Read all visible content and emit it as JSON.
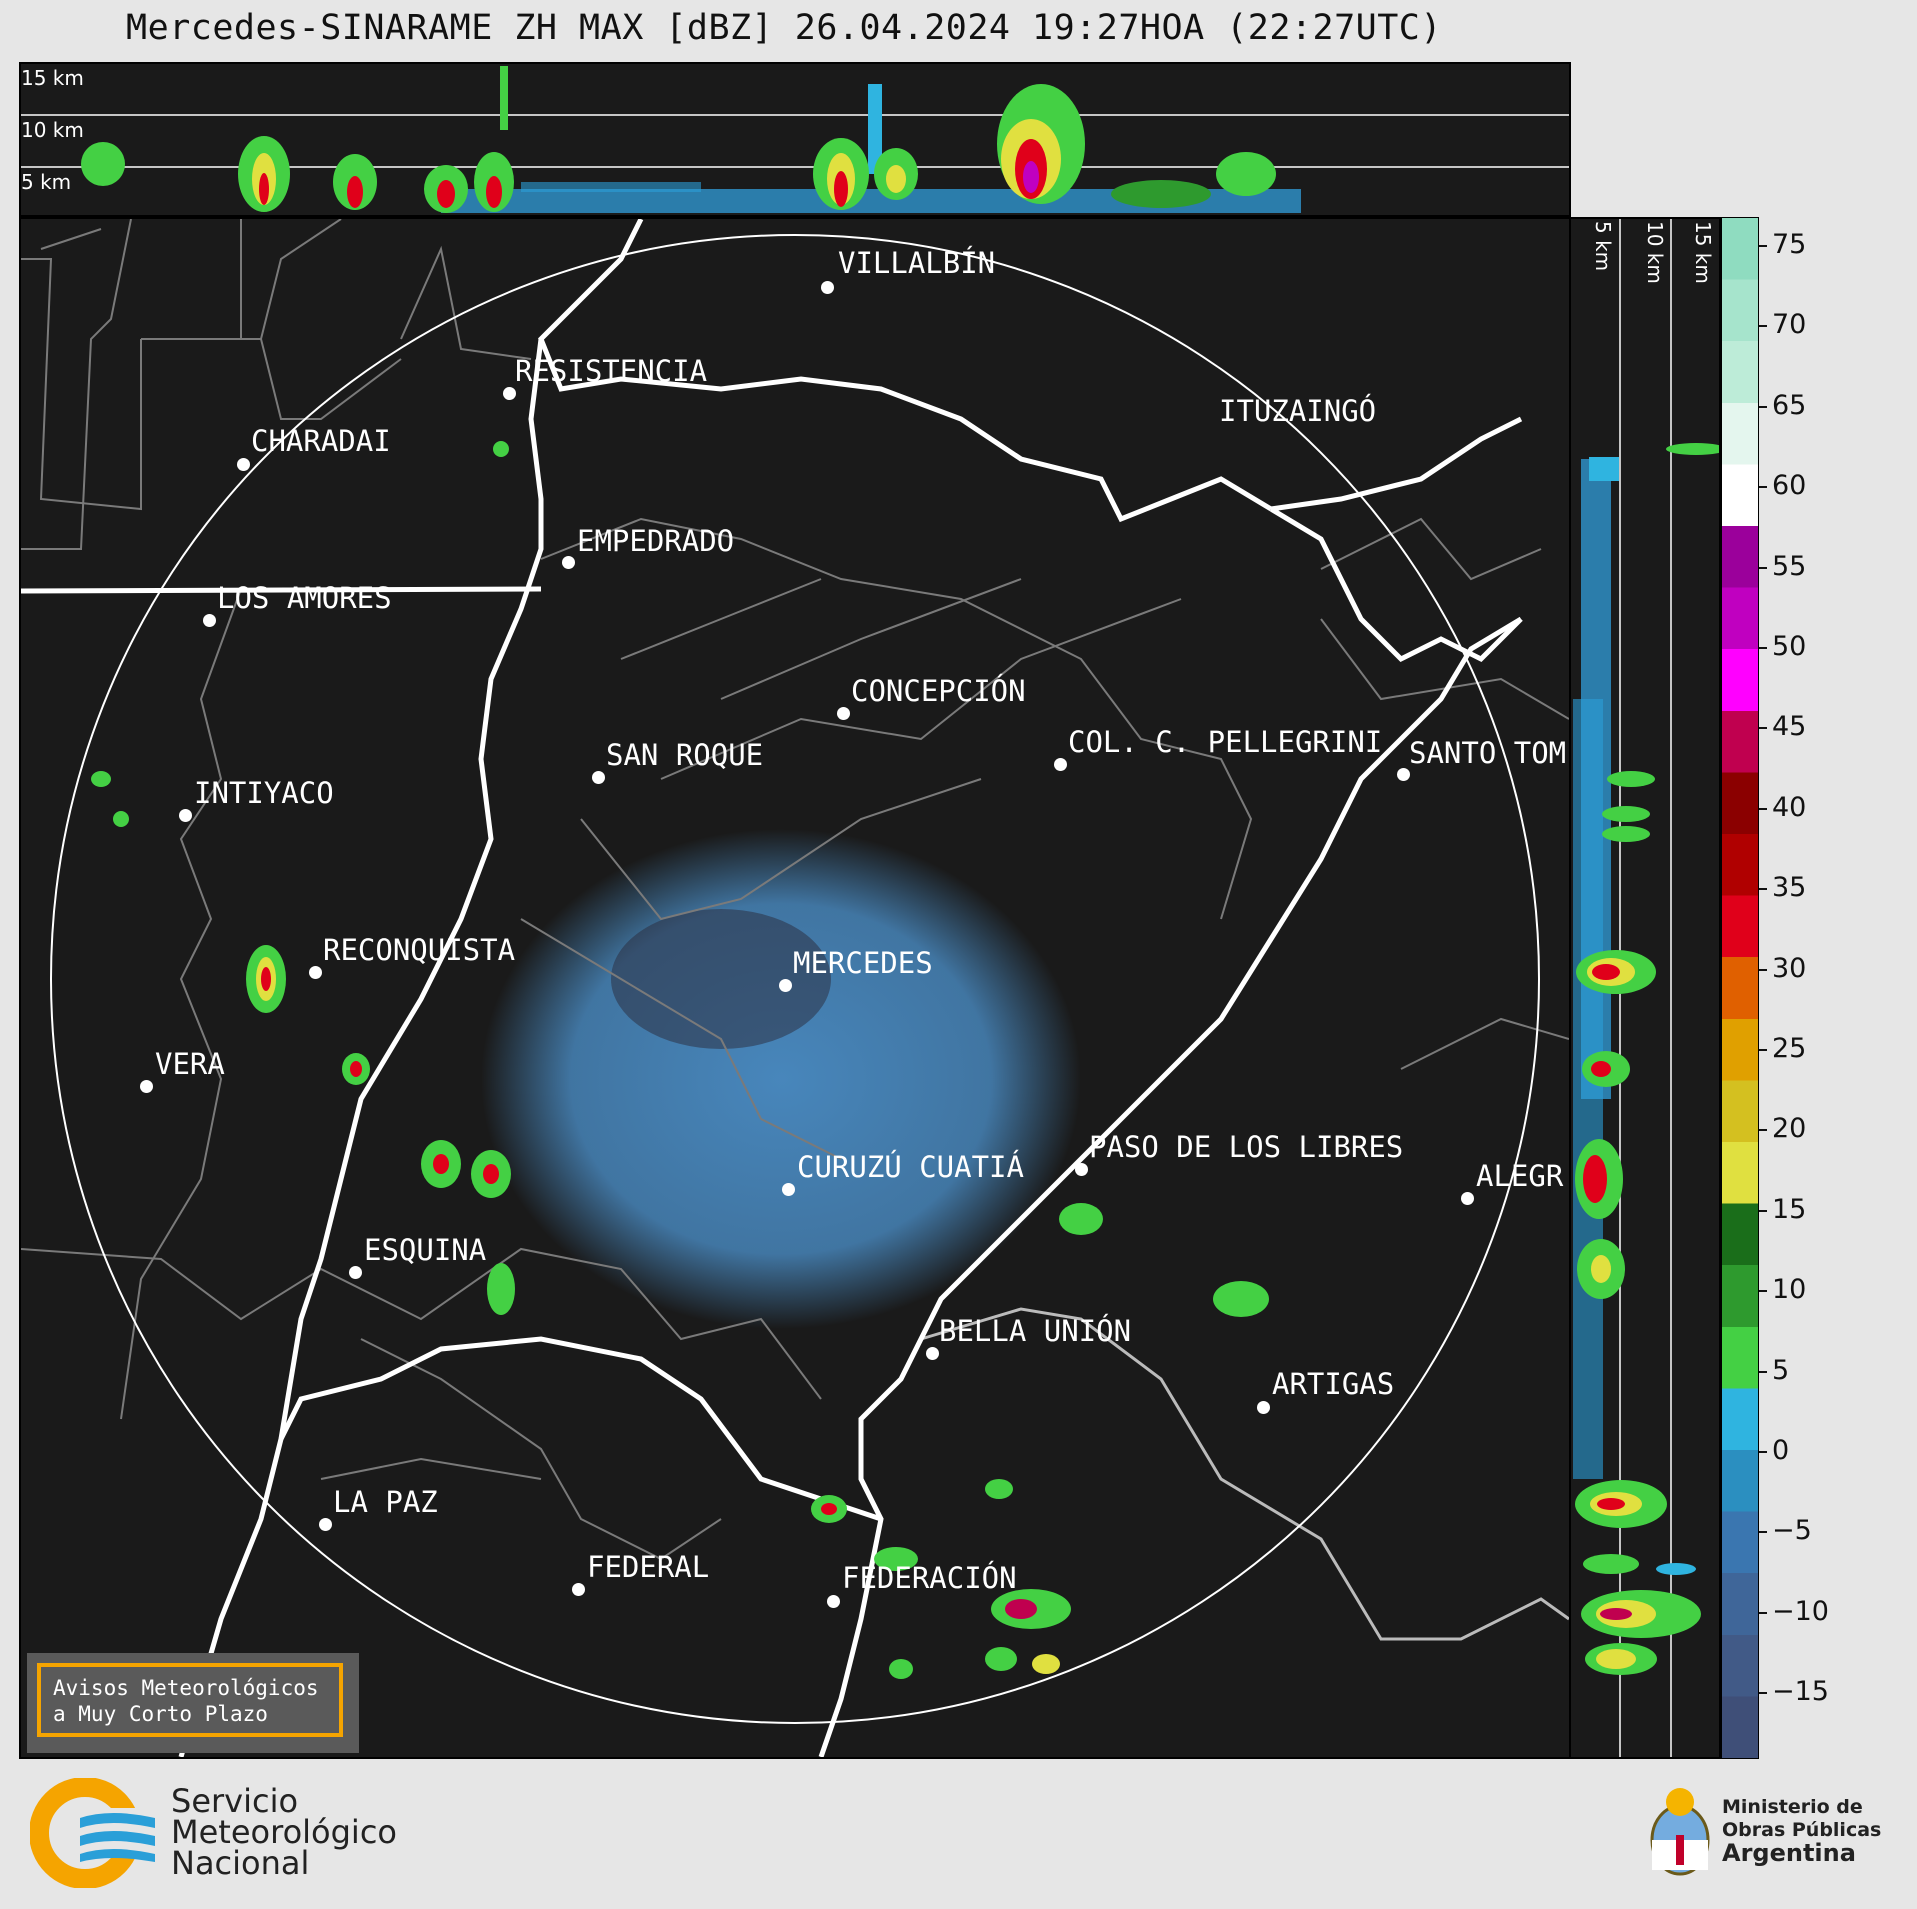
{
  "title": "Mercedes-SINARAME ZH MAX [dBZ] 26.04.2024 19:27HOA (22:27UTC)",
  "height_labels": [
    "15 km",
    "10 km",
    "5 km"
  ],
  "side_height_labels": [
    "5 km",
    "10 km",
    "15 km"
  ],
  "cities": [
    {
      "name": "VILLALBÍN"
    },
    {
      "name": "RESISTENCIA"
    },
    {
      "name": "CHARADAI"
    },
    {
      "name": "ITUZAINGÓ"
    },
    {
      "name": "EMPEDRADO"
    },
    {
      "name": "LOS AMORES"
    },
    {
      "name": "CONCEPCIÓN"
    },
    {
      "name": "COL. C. PELLEGRINI"
    },
    {
      "name": "SAN ROQUE"
    },
    {
      "name": "SANTO TOM"
    },
    {
      "name": "INTIYACO"
    },
    {
      "name": "RECONQUISTA"
    },
    {
      "name": "MERCEDES"
    },
    {
      "name": "VERA"
    },
    {
      "name": "PASO DE LOS LIBRES"
    },
    {
      "name": "CURUZÚ CUATIÁ"
    },
    {
      "name": "ALEGR"
    },
    {
      "name": "ESQUINA"
    },
    {
      "name": "BELLA UNIÓN"
    },
    {
      "name": "ARTIGAS"
    },
    {
      "name": "LA PAZ"
    },
    {
      "name": "FEDERAL"
    },
    {
      "name": "FEDERACIÓN"
    }
  ],
  "colorbar": {
    "unit": "dBZ",
    "ticks": [
      "75",
      "70",
      "65",
      "60",
      "55",
      "50",
      "45",
      "40",
      "35",
      "30",
      "25",
      "20",
      "15",
      "10",
      "5",
      "0",
      "−5",
      "−10",
      "−15"
    ],
    "colors": [
      "#8fdcc0",
      "#a6e4cc",
      "#bdecd8",
      "#e4f6ee",
      "#ffffff",
      "#9b009b",
      "#c000c0",
      "#ff00ff",
      "#c0004f",
      "#8b0000",
      "#b00000",
      "#e0001a",
      "#e06000",
      "#e0a000",
      "#d4c020",
      "#e0e040",
      "#1a6e1a",
      "#2e9a2e",
      "#44d044",
      "#2fb4e0",
      "#2b8fc0",
      "#3a76b0",
      "#3f6699",
      "#415a87",
      "#3f4f78"
    ]
  },
  "avisos": {
    "line1": "Avisos Meteorológicos",
    "line2": "a Muy Corto Plazo"
  },
  "logo_smn": {
    "line1": "Servicio",
    "line2": "Meteorológico",
    "line3": "Nacional"
  },
  "logo_ministerio": {
    "line1": "Ministerio de",
    "line2": "Obras Públicas",
    "line3": "Argentina"
  },
  "colors": {
    "background": "#e6e6e6",
    "panel": "#1a1a1a",
    "echo_weak": "#4a8cc4",
    "echo_strong": "#e0001a",
    "accent_orange": "#f5a400"
  }
}
